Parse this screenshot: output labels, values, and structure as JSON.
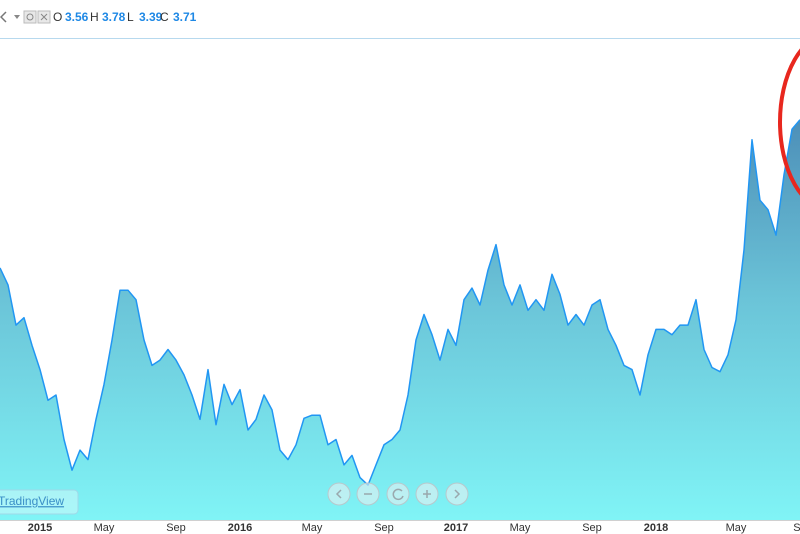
{
  "toolbar": {
    "open_key": "O",
    "open": 3.56,
    "high_key": "H",
    "high": 3.78,
    "low_key": "L",
    "low": 3.39,
    "close_key": "C",
    "close": 3.71
  },
  "watermark": "TradingView",
  "chart_data": {
    "type": "area",
    "categories": [
      null,
      null,
      null,
      null,
      null,
      "2015",
      null,
      null,
      null,
      null,
      null,
      null,
      null,
      "May",
      null,
      null,
      null,
      null,
      null,
      null,
      null,
      null,
      "Sep",
      null,
      null,
      null,
      null,
      null,
      null,
      null,
      "2016",
      null,
      null,
      null,
      null,
      null,
      null,
      null,
      null,
      "May",
      null,
      null,
      null,
      null,
      null,
      null,
      null,
      null,
      "Sep",
      null,
      null,
      null,
      null,
      null,
      null,
      null,
      null,
      "2017",
      null,
      null,
      null,
      null,
      null,
      null,
      null,
      "May",
      null,
      null,
      null,
      null,
      null,
      null,
      null,
      null,
      "Sep",
      null,
      null,
      null,
      null,
      null,
      null,
      null,
      "2018",
      null,
      null,
      null,
      null,
      null,
      null,
      null,
      null,
      null,
      "May",
      null,
      null,
      null,
      null,
      null,
      null,
      null,
      "Se"
    ],
    "values": [
      2.38,
      2.22,
      1.84,
      1.91,
      1.65,
      1.42,
      1.13,
      1.18,
      0.76,
      0.47,
      0.66,
      0.57,
      0.95,
      1.28,
      1.7,
      2.17,
      2.17,
      2.08,
      1.7,
      1.46,
      1.51,
      1.61,
      1.51,
      1.37,
      1.18,
      0.95,
      1.42,
      0.9,
      1.28,
      1.09,
      1.23,
      0.85,
      0.95,
      1.18,
      1.04,
      0.66,
      0.57,
      0.71,
      0.96,
      0.99,
      0.99,
      0.71,
      0.76,
      0.52,
      0.61,
      0.4,
      0.33,
      0.52,
      0.71,
      0.76,
      0.85,
      1.18,
      1.7,
      1.94,
      1.75,
      1.51,
      1.8,
      1.65,
      2.08,
      2.19,
      2.03,
      2.36,
      2.6,
      2.22,
      2.03,
      2.22,
      1.98,
      2.08,
      1.98,
      2.32,
      2.13,
      1.84,
      1.94,
      1.84,
      2.03,
      2.08,
      1.8,
      1.65,
      1.46,
      1.42,
      1.18,
      1.56,
      1.8,
      1.8,
      1.75,
      1.84,
      1.84,
      2.08,
      1.61,
      1.44,
      1.4,
      1.56,
      1.89,
      2.55,
      3.59,
      3.02,
      2.93,
      2.69,
      3.26,
      3.69,
      3.78
    ],
    "color": "#2196f3",
    "ylim": [
      0,
      4.91
    ]
  }
}
